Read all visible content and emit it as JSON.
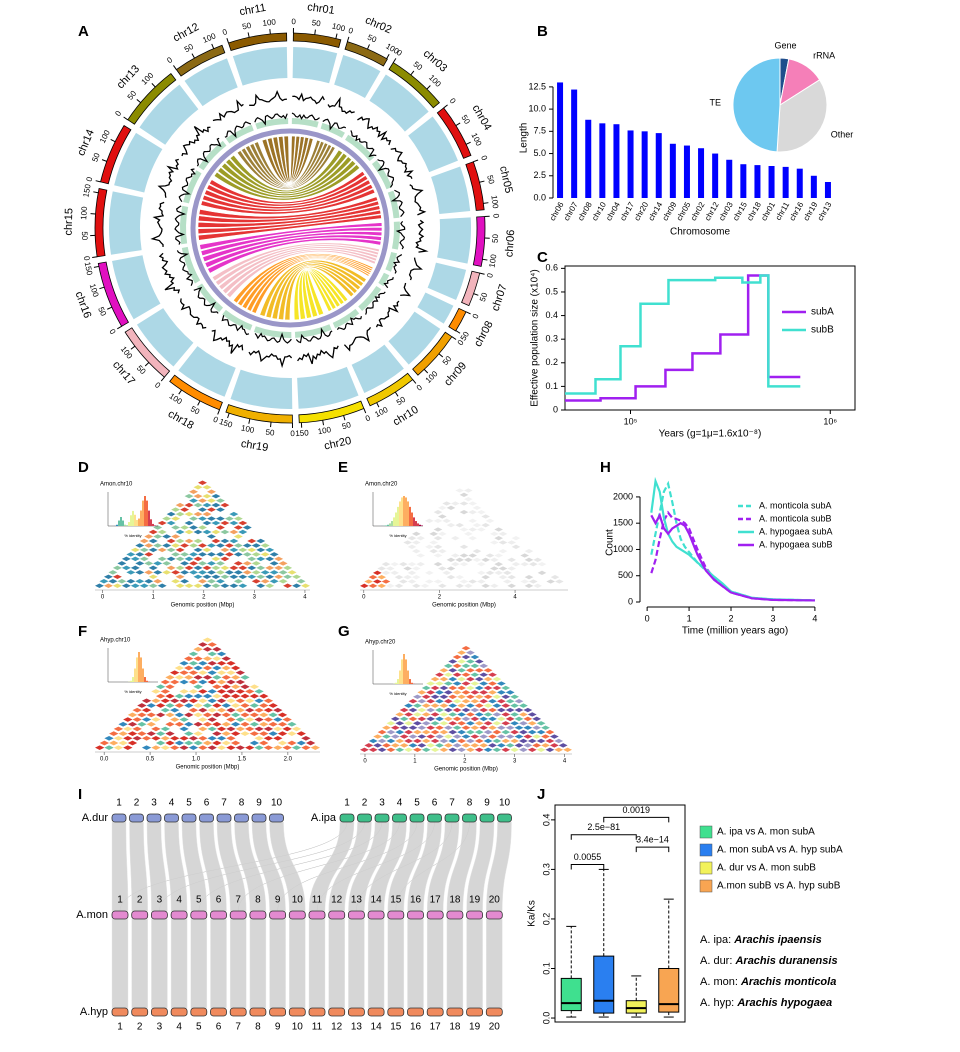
{
  "panel_labels": [
    "A",
    "B",
    "C",
    "D",
    "E",
    "F",
    "G",
    "H",
    "I",
    "J"
  ],
  "circos": {
    "chromosomes": [
      {
        "name": "chr01",
        "length": 112,
        "color": "#8b5a00",
        "ticks": [
          0,
          50,
          100
        ]
      },
      {
        "name": "chr02",
        "length": 102,
        "color": "#8b6914",
        "ticks": [
          0,
          50,
          100
        ]
      },
      {
        "name": "chr03",
        "length": 143,
        "color": "#8b8b00",
        "ticks": [
          0,
          50,
          100
        ]
      },
      {
        "name": "chr04",
        "length": 128,
        "color": "#e01010",
        "ticks": [
          0,
          50,
          100
        ]
      },
      {
        "name": "chr05",
        "length": 115,
        "color": "#e01010",
        "ticks": [
          0,
          50,
          100
        ]
      },
      {
        "name": "chr06",
        "length": 117,
        "color": "#e010c0",
        "ticks": [
          0,
          50,
          100
        ]
      },
      {
        "name": "chr07",
        "length": 80,
        "color": "#f2b4bc",
        "ticks": [
          0,
          50
        ]
      },
      {
        "name": "chr08",
        "length": 51,
        "color": "#ff8c00",
        "ticks": [
          0,
          50
        ]
      },
      {
        "name": "chr09",
        "length": 120,
        "color": "#f0a000",
        "ticks": [
          0,
          50,
          100
        ]
      },
      {
        "name": "chr10",
        "length": 117,
        "color": "#f0c800",
        "ticks": [
          0,
          50,
          100
        ]
      },
      {
        "name": "chr11",
        "length": 138,
        "color": "#8b5a00",
        "ticks": [
          0,
          50,
          100
        ]
      },
      {
        "name": "chr12",
        "length": 121,
        "color": "#8b6914",
        "ticks": [
          0,
          50,
          100
        ]
      },
      {
        "name": "chr13",
        "length": 148,
        "color": "#8b8b00",
        "ticks": [
          0,
          50,
          100
        ]
      },
      {
        "name": "chr14",
        "length": 143,
        "color": "#e01010",
        "ticks": [
          0,
          50,
          100
        ]
      },
      {
        "name": "chr15",
        "length": 160,
        "color": "#e01010",
        "ticks": [
          0,
          50,
          100,
          150
        ]
      },
      {
        "name": "chr16",
        "length": 157,
        "color": "#e010c0",
        "ticks": [
          0,
          50,
          100,
          150
        ]
      },
      {
        "name": "chr17",
        "length": 140,
        "color": "#f2b4bc",
        "ticks": [
          0,
          50,
          100
        ]
      },
      {
        "name": "chr18",
        "length": 134,
        "color": "#ff8c00",
        "ticks": [
          0,
          50,
          100
        ]
      },
      {
        "name": "chr19",
        "length": 158,
        "color": "#f0b000",
        "ticks": [
          0,
          50,
          100,
          150
        ]
      },
      {
        "name": "chr20",
        "length": 155,
        "color": "#f5e000",
        "ticks": [
          0,
          50,
          100,
          150
        ]
      }
    ]
  },
  "chart_data": [
    {
      "type": "bar",
      "ylabel": "Length",
      "xlabel": "Chromosome",
      "categories": [
        "chr06",
        "chr07",
        "chr08",
        "chr10",
        "chr04",
        "chr17",
        "chr20",
        "chr14",
        "chr09",
        "chr05",
        "chr02",
        "chr12",
        "chr03",
        "chr15",
        "chr18",
        "chr01",
        "chr11",
        "chr16",
        "chr19",
        "chr13"
      ],
      "values": [
        13.0,
        12.2,
        8.8,
        8.4,
        8.3,
        7.6,
        7.5,
        7.3,
        6.1,
        5.9,
        5.6,
        5.0,
        4.3,
        3.8,
        3.7,
        3.6,
        3.5,
        3.3,
        2.5,
        1.8
      ],
      "color": "#0000ff",
      "ylim": [
        0,
        13.5
      ],
      "yticks": [
        {
          "value": 0,
          "label": "0.0"
        },
        2.5,
        {
          "value": 5,
          "label": "5.0"
        },
        7.5,
        {
          "value": 10,
          "label": "10.0"
        },
        12.5
      ]
    },
    {
      "type": "pie",
      "categories": [
        "Gene",
        "rRNA",
        "Other",
        "TE"
      ],
      "values": [
        3,
        13,
        35,
        49
      ],
      "colors": [
        "#1f4e8c",
        "#f57fb8",
        "#d9d9d9",
        "#6dc8f0"
      ]
    },
    {
      "type": "line",
      "step": true,
      "log_x": true,
      "xlabel": "Years (g=1μ=1.6x10⁻⁸)",
      "ylabel": "Effective population size (x10⁴)",
      "xlim": [
        47000,
        1330000
      ],
      "xticks": [
        {
          "value": 100000,
          "label": "10⁵"
        },
        {
          "value": 1000000,
          "label": "10⁶"
        }
      ],
      "ylim": [
        0,
        0.61
      ],
      "yticks": [
        0,
        0.1,
        0.2,
        0.3,
        0.4,
        0.5,
        0.6
      ],
      "legend": "right",
      "series": [
        {
          "name": "subA",
          "color": "#a020f0",
          "x": [
            47000,
            70800,
            106000,
            149600,
            204200,
            281800,
            388100,
            489800,
            707900
          ],
          "values": [
            0.04,
            0.05,
            0.1,
            0.17,
            0.24,
            0.32,
            0.57,
            0.14,
            0.14
          ]
        },
        {
          "name": "subB",
          "color": "#40e0d0",
          "x": [
            47000,
            66800,
            89100,
            112200,
            154900,
            265500,
            363100,
            446700,
            489800,
            707900
          ],
          "values": [
            0.07,
            0.13,
            0.27,
            0.45,
            0.55,
            0.56,
            0.54,
            0.57,
            0.1,
            0.1
          ]
        }
      ]
    },
    {
      "type": "line",
      "xlabel": "Time (million years ago)",
      "ylabel": "Count",
      "x": [
        0.1,
        0.2,
        0.3,
        0.4,
        0.5,
        0.6,
        0.7,
        0.8,
        0.9,
        1.0,
        1.2,
        1.4,
        1.6,
        1.8,
        2.0,
        2.5,
        3.0,
        3.5,
        4.0
      ],
      "xlim": [
        -0.17,
        4.36
      ],
      "xticks": [
        0,
        1,
        2,
        3,
        4
      ],
      "ylim": [
        -95,
        2360
      ],
      "yticks": [
        0,
        500,
        1000,
        1500,
        2000
      ],
      "legend": "upper right",
      "series": [
        {
          "name": "A. monticola subA",
          "color": "#40e0d0",
          "dash": true,
          "values": [
            900,
            1300,
            1700,
            2100,
            2250,
            1900,
            1500,
            1200,
            1050,
            950,
            750,
            600,
            450,
            330,
            200,
            80,
            50,
            40,
            30
          ]
        },
        {
          "name": "A. monticola subB",
          "color": "#a020f0",
          "dash": true,
          "values": [
            550,
            800,
            1200,
            1550,
            1700,
            1600,
            1580,
            1550,
            1500,
            1400,
            1000,
            650,
            450,
            300,
            180,
            70,
            40,
            35,
            30
          ]
        },
        {
          "name": "A. hypogaea subA",
          "color": "#40e0d0",
          "dash": false,
          "values": [
            1700,
            2300,
            2100,
            1600,
            1300,
            1150,
            1050,
            1000,
            950,
            900,
            750,
            620,
            480,
            350,
            200,
            80,
            50,
            40,
            30
          ]
        },
        {
          "name": "A. hypogaea subB",
          "color": "#a020f0",
          "dash": false,
          "values": [
            1650,
            1500,
            1650,
            1400,
            1300,
            1400,
            1450,
            1500,
            1450,
            1300,
            900,
            600,
            420,
            300,
            180,
            70,
            40,
            35,
            30
          ]
        }
      ]
    },
    {
      "type": "box",
      "ylabel": "Ka/Ks",
      "ylim": [
        -0.008,
        0.43
      ],
      "yticks": [
        {
          "value": 0,
          "label": "0.0"
        },
        0.1,
        0.2,
        0.3,
        0.4
      ],
      "legend": "right",
      "boxes": [
        {
          "name": "A. ipa vs A. mon subA",
          "color": "#3fe08f",
          "whisker_low": 0.002,
          "q1": 0.015,
          "median": 0.03,
          "q3": 0.08,
          "whisker_high": 0.185
        },
        {
          "name": "A. mon subA vs A. hyp subA",
          "color": "#2a7ff0",
          "whisker_low": 0.002,
          "q1": 0.01,
          "median": 0.035,
          "q3": 0.125,
          "whisker_high": 0.3
        },
        {
          "name": "A. dur vs A. mon subB",
          "color": "#f2f25a",
          "whisker_low": 0.002,
          "q1": 0.01,
          "median": 0.02,
          "q3": 0.035,
          "whisker_high": 0.085
        },
        {
          "name": "A.mon subB vs A. hyp subB",
          "color": "#f8a552",
          "whisker_low": 0.002,
          "q1": 0.012,
          "median": 0.028,
          "q3": 0.1,
          "whisker_high": 0.24
        }
      ],
      "annotations": [
        {
          "text": "0.0055",
          "from": 0,
          "to": 1,
          "y": 0.31
        },
        {
          "text": "2.5e−81",
          "from": 0,
          "to": 2,
          "y": 0.37
        },
        {
          "text": "0.0019",
          "from": 1,
          "to": 3,
          "y": 0.405
        },
        {
          "text": "3.4e−14",
          "from": 2,
          "to": 3,
          "y": 0.345
        }
      ]
    }
  ],
  "heatmaps": [
    {
      "title": "Amon.chr10",
      "xlabel": "Genomic position (Mbp)",
      "inset_xlabel": "% identity",
      "xlim": [
        -0.15,
        4.1
      ],
      "xticks": [
        0,
        1,
        2,
        3,
        4
      ]
    },
    {
      "title": "Amon.chr20",
      "xlabel": "Genomic position (Mbp)",
      "inset_xlabel": "% identity",
      "xlim": [
        -0.1,
        5.4
      ],
      "xticks": [
        0,
        2,
        4
      ]
    },
    {
      "title": "Ahyp.chr10",
      "xlabel": "Genomic position (Mbp)",
      "inset_xlabel": "% identity",
      "xlim": [
        -0.1,
        2.35
      ],
      "xticks": [
        {
          "value": 0,
          "label": "0.0"
        },
        0.5,
        {
          "value": 1,
          "label": "1.0"
        },
        1.5,
        {
          "value": 2,
          "label": "2.0"
        }
      ]
    },
    {
      "title": "Ahyp.chr20",
      "xlabel": "Genomic position (Mbp)",
      "inset_xlabel": "% identity",
      "xlim": [
        -0.1,
        4.15
      ],
      "xticks": [
        0,
        1,
        2,
        3,
        4
      ]
    }
  ],
  "synteny": {
    "genomes": [
      {
        "name": "A.dur",
        "color": "#8a9ad6",
        "chromosomes": [
          1,
          2,
          3,
          4,
          5,
          6,
          7,
          8,
          9,
          10
        ]
      },
      {
        "name": "A.ipa",
        "color": "#3fbf8a",
        "chromosomes": [
          1,
          2,
          3,
          4,
          5,
          6,
          7,
          8,
          9,
          10
        ]
      },
      {
        "name": "A.mon",
        "color": "#e38ad0",
        "chromosomes": [
          1,
          2,
          3,
          4,
          5,
          6,
          7,
          8,
          9,
          10,
          11,
          12,
          13,
          14,
          15,
          16,
          17,
          18,
          19,
          20
        ]
      },
      {
        "name": "A.hyp",
        "color": "#f08a5d",
        "chromosomes": [
          1,
          2,
          3,
          4,
          5,
          6,
          7,
          8,
          9,
          10,
          11,
          12,
          13,
          14,
          15,
          16,
          17,
          18,
          19,
          20
        ]
      }
    ]
  },
  "species_notes": [
    {
      "abbr": "A. ipa:",
      "name": "Arachis ipaensis"
    },
    {
      "abbr": "A. dur:",
      "name": "Arachis duranensis"
    },
    {
      "abbr": "A. mon:",
      "name": "Arachis monticola"
    },
    {
      "abbr": "A. hyp:",
      "name": "Arachis hypogaea"
    }
  ]
}
